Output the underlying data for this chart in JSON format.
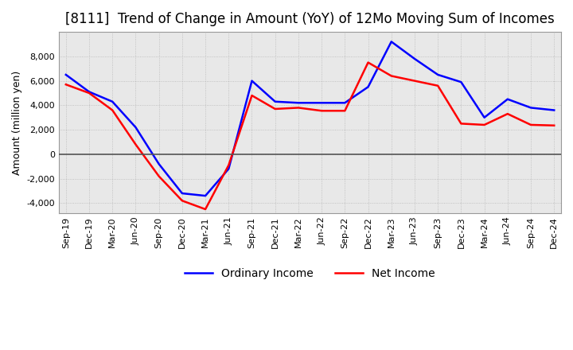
{
  "title": "[8111]  Trend of Change in Amount (YoY) of 12Mo Moving Sum of Incomes",
  "ylabel": "Amount (million yen)",
  "ylim": [
    -4800,
    10000
  ],
  "yticks": [
    -4000,
    -2000,
    0,
    2000,
    4000,
    6000,
    8000
  ],
  "x_labels": [
    "Sep-19",
    "Dec-19",
    "Mar-20",
    "Jun-20",
    "Sep-20",
    "Dec-20",
    "Mar-21",
    "Jun-21",
    "Sep-21",
    "Dec-21",
    "Mar-22",
    "Jun-22",
    "Sep-22",
    "Dec-22",
    "Mar-23",
    "Jun-23",
    "Sep-23",
    "Dec-23",
    "Mar-24",
    "Jun-24",
    "Sep-24",
    "Dec-24"
  ],
  "ordinary_income": [
    6500,
    5100,
    4300,
    2200,
    -800,
    -3200,
    -3400,
    -1200,
    6000,
    4300,
    4200,
    4200,
    4200,
    5500,
    9200,
    7800,
    6500,
    5900,
    3000,
    4500,
    3800,
    3600
  ],
  "net_income": [
    5700,
    5000,
    3600,
    800,
    -1800,
    -3800,
    -4500,
    -900,
    4800,
    3700,
    3800,
    3550,
    3550,
    7500,
    6400,
    6000,
    5600,
    2500,
    2400,
    3300,
    2400,
    2350
  ],
  "ordinary_color": "#0000ff",
  "net_color": "#ff0000",
  "background_color": "#ffffff",
  "plot_bg_color": "#e8e8e8",
  "grid_color": "#aaaaaa",
  "zero_line_color": "#555555",
  "title_fontsize": 12,
  "label_fontsize": 9,
  "tick_fontsize": 8,
  "legend_fontsize": 10
}
